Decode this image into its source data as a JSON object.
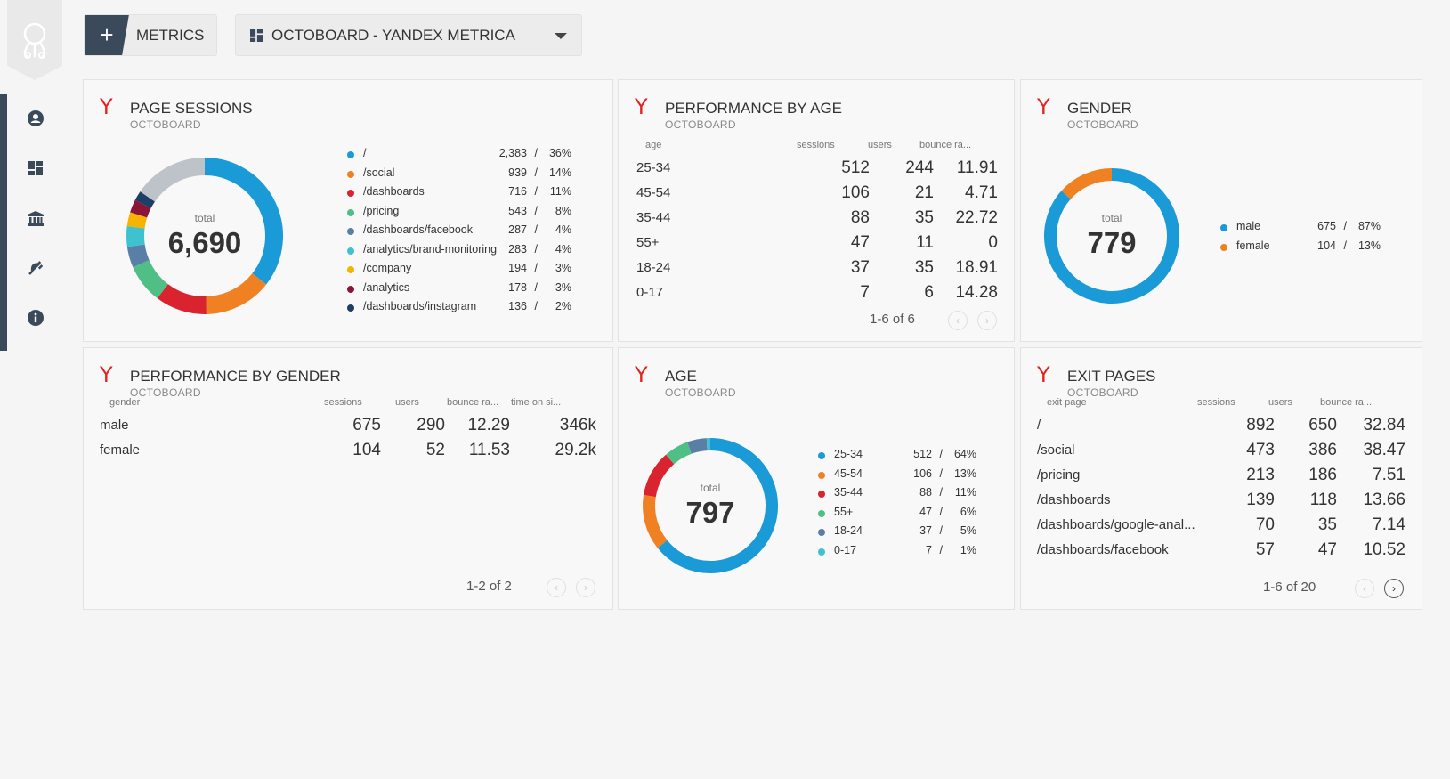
{
  "topbar": {
    "metrics_label": "METRICS",
    "dashboard_label": "OCTOBOARD - YANDEX METRICA"
  },
  "sidebar": {
    "icons": [
      "user-icon",
      "dashboard-icon",
      "bank-icon",
      "plugin-icon",
      "info-icon"
    ]
  },
  "colors": {
    "accent": "#3b4a5a",
    "yandex": "#e6201c",
    "blue": "#1a9ad6",
    "orange": "#f08123",
    "red": "#d9232e",
    "green": "#4fbf85",
    "steel": "#5a7fa6",
    "cyan": "#3fc1d0",
    "yellow": "#f5b400",
    "maroon": "#8b1538",
    "navy": "#1d3f66",
    "grey": "#bdc3c9"
  },
  "page_sessions": {
    "title": "PAGE SESSIONS",
    "subtitle": "OCTOBOARD",
    "total_label": "total",
    "total_value": "6,690",
    "rows": [
      {
        "label": "/",
        "value": "2,383",
        "pct": "36%"
      },
      {
        "label": "/social",
        "value": "939",
        "pct": "14%"
      },
      {
        "label": "/dashboards",
        "value": "716",
        "pct": "11%"
      },
      {
        "label": "/pricing",
        "value": "543",
        "pct": "8%"
      },
      {
        "label": "/dashboards/facebook",
        "value": "287",
        "pct": "4%"
      },
      {
        "label": "/analytics/brand-monitoring",
        "value": "283",
        "pct": "4%"
      },
      {
        "label": "/company",
        "value": "194",
        "pct": "3%"
      },
      {
        "label": "/analytics",
        "value": "178",
        "pct": "3%"
      },
      {
        "label": "/dashboards/instagram",
        "value": "136",
        "pct": "2%"
      }
    ]
  },
  "perf_age": {
    "title": "PERFORMANCE BY AGE",
    "subtitle": "OCTOBOARD",
    "headers": [
      "age",
      "sessions",
      "users",
      "bounce ra..."
    ],
    "rows": [
      [
        "25-34",
        "512",
        "244",
        "11.91"
      ],
      [
        "45-54",
        "106",
        "21",
        "4.71"
      ],
      [
        "35-44",
        "88",
        "35",
        "22.72"
      ],
      [
        "55+",
        "47",
        "11",
        "0"
      ],
      [
        "18-24",
        "37",
        "35",
        "18.91"
      ],
      [
        "0-17",
        "7",
        "6",
        "14.28"
      ]
    ],
    "pager": "1-6 of 6"
  },
  "gender": {
    "title": "GENDER",
    "subtitle": "OCTOBOARD",
    "total_label": "total",
    "total_value": "779",
    "rows": [
      {
        "label": "male",
        "value": "675",
        "pct": "87%"
      },
      {
        "label": "female",
        "value": "104",
        "pct": "13%"
      }
    ]
  },
  "perf_gender": {
    "title": "PERFORMANCE BY GENDER",
    "subtitle": "OCTOBOARD",
    "headers": [
      "gender",
      "sessions",
      "users",
      "bounce ra...",
      "time on si..."
    ],
    "rows": [
      [
        "male",
        "675",
        "290",
        "12.29",
        "346k"
      ],
      [
        "female",
        "104",
        "52",
        "11.53",
        "29.2k"
      ]
    ],
    "pager": "1-2 of 2"
  },
  "age": {
    "title": "AGE",
    "subtitle": "OCTOBOARD",
    "total_label": "total",
    "total_value": "797",
    "rows": [
      {
        "label": "25-34",
        "value": "512",
        "pct": "64%"
      },
      {
        "label": "45-54",
        "value": "106",
        "pct": "13%"
      },
      {
        "label": "35-44",
        "value": "88",
        "pct": "11%"
      },
      {
        "label": "55+",
        "value": "47",
        "pct": "6%"
      },
      {
        "label": "18-24",
        "value": "37",
        "pct": "5%"
      },
      {
        "label": "0-17",
        "value": "7",
        "pct": "1%"
      }
    ]
  },
  "exit_pages": {
    "title": "EXIT PAGES",
    "subtitle": "OCTOBOARD",
    "headers": [
      "exit page",
      "sessions",
      "users",
      "bounce ra..."
    ],
    "rows": [
      [
        "/",
        "892",
        "650",
        "32.84"
      ],
      [
        "/social",
        "473",
        "386",
        "38.47"
      ],
      [
        "/pricing",
        "213",
        "186",
        "7.51"
      ],
      [
        "/dashboards",
        "139",
        "118",
        "13.66"
      ],
      [
        "/dashboards/google-anal...",
        "70",
        "35",
        "7.14"
      ],
      [
        "/dashboards/facebook",
        "57",
        "47",
        "10.52"
      ]
    ],
    "pager": "1-6 of 20"
  },
  "chart_data": [
    {
      "type": "pie",
      "title": "PAGE SESSIONS",
      "categories": [
        "/",
        "/social",
        "/dashboards",
        "/pricing",
        "/dashboards/facebook",
        "/analytics/brand-monitoring",
        "/company",
        "/analytics",
        "/dashboards/instagram"
      ],
      "values": [
        2383,
        939,
        716,
        543,
        287,
        283,
        194,
        178,
        136
      ],
      "total": 6690,
      "colors": [
        "#1a9ad6",
        "#f08123",
        "#d9232e",
        "#4fbf85",
        "#5a7fa6",
        "#3fc1d0",
        "#f5b400",
        "#8b1538",
        "#1d3f66"
      ],
      "other_color": "#bdc3c9"
    },
    {
      "type": "pie",
      "title": "GENDER",
      "categories": [
        "male",
        "female"
      ],
      "values": [
        675,
        104
      ],
      "total": 779,
      "colors": [
        "#1a9ad6",
        "#f08123"
      ]
    },
    {
      "type": "pie",
      "title": "AGE",
      "categories": [
        "25-34",
        "45-54",
        "35-44",
        "55+",
        "18-24",
        "0-17"
      ],
      "values": [
        512,
        106,
        88,
        47,
        37,
        7
      ],
      "total": 797,
      "colors": [
        "#1a9ad6",
        "#f08123",
        "#d9232e",
        "#4fbf85",
        "#5a7fa6",
        "#3fc1d0"
      ]
    }
  ]
}
